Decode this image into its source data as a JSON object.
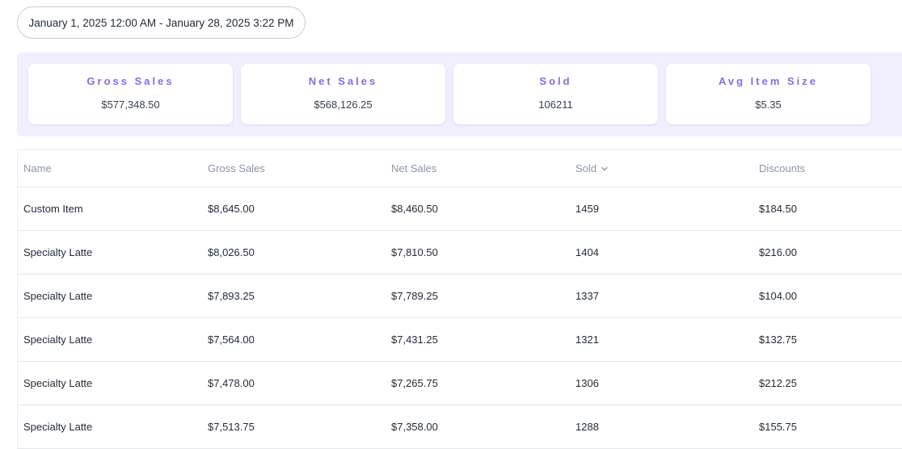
{
  "date_range": "January 1, 2025 12:00 AM - January 28, 2025 3:22 PM",
  "summary": [
    {
      "title": "Gross Sales",
      "value": "$577,348.50"
    },
    {
      "title": "Net Sales",
      "value": "$568,126.25"
    },
    {
      "title": "Sold",
      "value": "106211"
    },
    {
      "title": "Avg Item Size",
      "value": "$5.35"
    }
  ],
  "table": {
    "columns": [
      "Name",
      "Gross Sales",
      "Net Sales",
      "Sold",
      "Discounts"
    ],
    "sorted_column_icon": "chevron-down-icon",
    "rows": [
      [
        "Custom Item",
        "$8,645.00",
        "$8,460.50",
        "1459",
        "$184.50"
      ],
      [
        "Specialty Latte",
        "$8,026.50",
        "$7,810.50",
        "1404",
        "$216.00"
      ],
      [
        "Specialty Latte",
        "$7,893.25",
        "$7,789.25",
        "1337",
        "$104.00"
      ],
      [
        "Specialty Latte",
        "$7,564.00",
        "$7,431.25",
        "1321",
        "$132.75"
      ],
      [
        "Specialty Latte",
        "$7,478.00",
        "$7,265.75",
        "1306",
        "$212.25"
      ],
      [
        "Specialty Latte",
        "$7,513.75",
        "$7,358.00",
        "1288",
        "$155.75"
      ]
    ]
  },
  "colors": {
    "accent": "#7b6fe6",
    "band": "#f1efff"
  }
}
